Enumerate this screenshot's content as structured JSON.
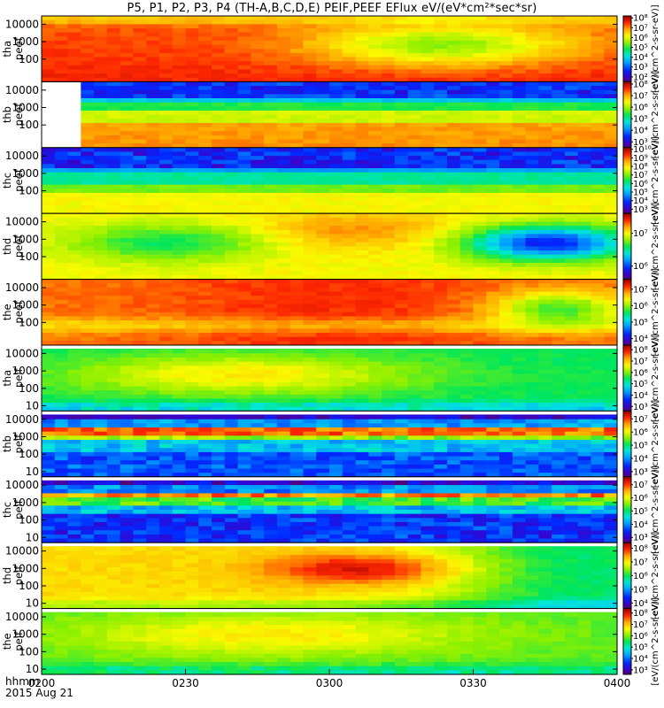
{
  "chart_data": {
    "type": "heatmap",
    "title": "P5, P1, P2, P3, P4 (TH-A,B,C,D,E) PEIF,PEEF EFlux eV/(eV*cm²*sec*sr)",
    "x_axis": {
      "ticks": [
        "0200",
        "0230",
        "0300",
        "0330",
        "0400"
      ],
      "x_range_hhmm": [
        "0200",
        "0400"
      ],
      "label_line1": "hhmm",
      "label_line2": "2015 Aug 21"
    },
    "colorbar_unit": "[eV/(cm^2-s-sr-eV)]",
    "log_scale_y": true,
    "panels": [
      {
        "id": "tha_peef",
        "label_line1": "tha",
        "label_line2": "peef",
        "yticks": [
          "100",
          "1000",
          "10000"
        ],
        "ylim_eV": [
          5,
          30000
        ],
        "cb_ticks": [
          "10²",
          "10³",
          "10⁴",
          "10⁵",
          "10⁶",
          "10⁷",
          "10⁸"
        ],
        "cb_range_exp": [
          1.5,
          8.2
        ]
      },
      {
        "id": "thb_peef",
        "label_line1": "thb",
        "label_line2": "peef",
        "yticks": [
          "100",
          "1000",
          "10000"
        ],
        "ylim_eV": [
          5,
          30000
        ],
        "cb_ticks": [
          "10³",
          "10⁴",
          "10⁵",
          "10⁶",
          "10⁷",
          "10⁸"
        ],
        "cb_range_exp": [
          2.5,
          8.2
        ]
      },
      {
        "id": "thc_peef",
        "label_line1": "thc",
        "label_line2": "peef",
        "yticks": [
          "100",
          "1000",
          "10000"
        ],
        "ylim_eV": [
          5,
          30000
        ],
        "cb_ticks": [
          "10³",
          "10⁴",
          "10⁵",
          "10⁶",
          "10⁷",
          "10⁸",
          "10⁹",
          "10¹⁰"
        ],
        "cb_range_exp": [
          2.5,
          10.2
        ]
      },
      {
        "id": "thd_peef",
        "label_line1": "thd",
        "label_line2": "peef",
        "yticks": [
          "100",
          "1000",
          "10000"
        ],
        "ylim_eV": [
          5,
          30000
        ],
        "cb_ticks": [
          "10⁶",
          "10⁷"
        ],
        "cb_range_exp": [
          5.6,
          7.6
        ]
      },
      {
        "id": "the_peef",
        "label_line1": "the",
        "label_line2": "peef",
        "yticks": [
          "100",
          "1000",
          "10000"
        ],
        "ylim_eV": [
          5,
          30000
        ],
        "cb_ticks": [
          "10⁴",
          "10⁵",
          "10⁶",
          "10⁷"
        ],
        "cb_range_exp": [
          3.6,
          7.6
        ]
      },
      {
        "id": "tha_peif",
        "label_line1": "tha",
        "label_line2": "peif",
        "yticks": [
          "10",
          "100",
          "1000",
          "10000"
        ],
        "ylim_eV": [
          5,
          30000
        ],
        "cb_ticks": [
          "10³",
          "10⁴",
          "10⁵",
          "10⁶",
          "10⁷",
          "10⁸"
        ],
        "cb_range_exp": [
          2.6,
          8.4
        ]
      },
      {
        "id": "thb_peif",
        "label_line1": "thb",
        "label_line2": "peif",
        "yticks": [
          "10",
          "100",
          "1000",
          "10000"
        ],
        "ylim_eV": [
          5,
          30000
        ],
        "cb_ticks": [
          "10³",
          "10⁴",
          "10⁵",
          "10⁶",
          "10⁷"
        ],
        "cb_range_exp": [
          2.6,
          7.6
        ]
      },
      {
        "id": "thc_peif",
        "label_line1": "thc",
        "label_line2": "peif",
        "yticks": [
          "10",
          "100",
          "1000",
          "10000"
        ],
        "ylim_eV": [
          5,
          30000
        ],
        "cb_ticks": [
          "10³",
          "10⁴",
          "10⁵",
          "10⁶",
          "10⁷"
        ],
        "cb_range_exp": [
          2.6,
          7.6
        ]
      },
      {
        "id": "thd_peif",
        "label_line1": "thd",
        "label_line2": "peif",
        "yticks": [
          "10",
          "100",
          "1000",
          "10000"
        ],
        "ylim_eV": [
          5,
          30000
        ],
        "cb_ticks": [
          "10⁴",
          "10⁵",
          "10⁶",
          "10⁷",
          "10⁸"
        ],
        "cb_range_exp": [
          3.6,
          8.4
        ]
      },
      {
        "id": "the_peif",
        "label_line1": "the",
        "label_line2": "peif",
        "yticks": [
          "10",
          "100",
          "1000",
          "10000"
        ],
        "ylim_eV": [
          5,
          30000
        ],
        "cb_ticks": [
          "10³",
          "10⁴",
          "10⁵",
          "10⁶",
          "10⁷",
          "10⁸"
        ],
        "cb_range_exp": [
          2.6,
          8.4
        ]
      }
    ]
  }
}
